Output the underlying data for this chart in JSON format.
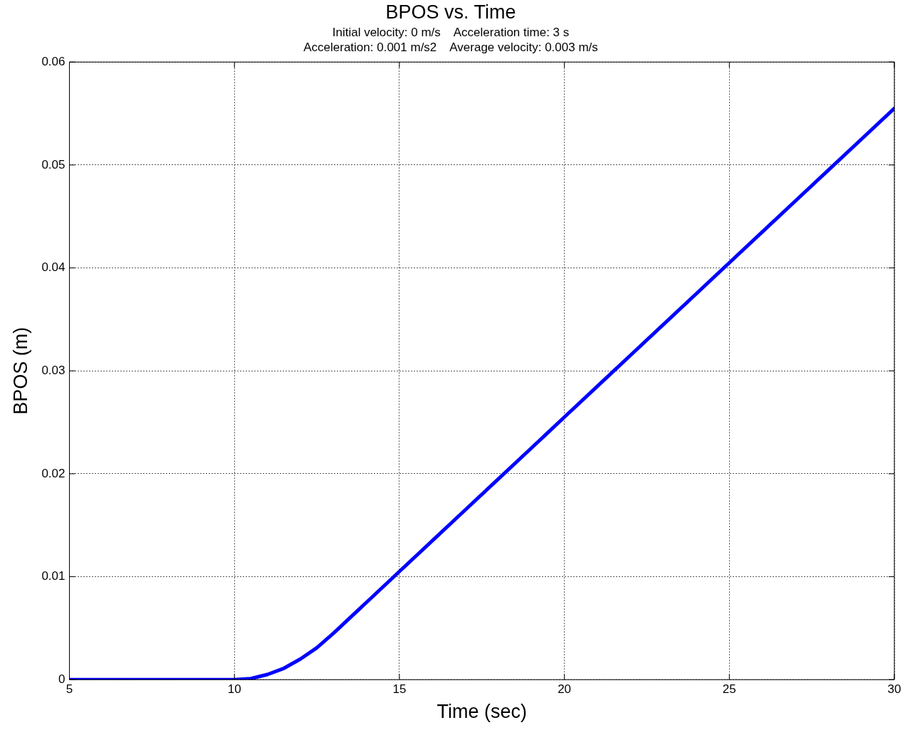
{
  "chart_data": {
    "type": "line",
    "title": "BPOS vs. Time",
    "subtitle": "Initial velocity: 0 m/s    Acceleration time: 3 s\nAcceleration: 0.001 m/s2    Average velocity: 0.003 m/s",
    "xlabel": "Time (sec)",
    "ylabel": "BPOS (m)",
    "x": [
      5,
      10,
      10.5,
      11,
      11.5,
      12,
      12.5,
      13,
      14,
      15,
      16,
      17,
      18,
      19,
      20,
      21,
      22,
      23,
      24,
      25,
      26,
      27,
      28,
      29,
      30
    ],
    "series": [
      {
        "color": "#0000ff",
        "values": [
          0,
          0,
          0.0001,
          0.0005,
          0.0011,
          0.002,
          0.0031,
          0.0045,
          0.0075,
          0.0105,
          0.0135,
          0.0165,
          0.0195,
          0.0225,
          0.0255,
          0.0285,
          0.0315,
          0.0345,
          0.0375,
          0.0405,
          0.0435,
          0.0465,
          0.0495,
          0.0525,
          0.0555
        ]
      }
    ],
    "xlim": [
      5,
      30
    ],
    "xticks": [
      5,
      10,
      15,
      20,
      25,
      30
    ],
    "ylim": [
      0,
      0.06
    ],
    "yticks": [
      0,
      0.01,
      0.02,
      0.03,
      0.04,
      0.05,
      0.06
    ],
    "grid": true,
    "legend": false,
    "marker": "none",
    "line_style": "solid"
  }
}
